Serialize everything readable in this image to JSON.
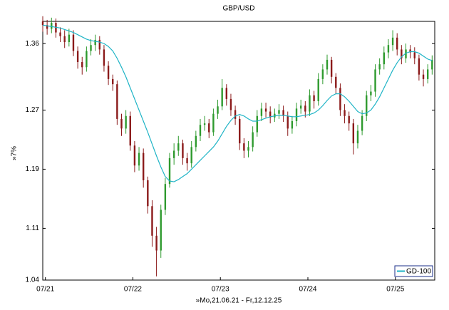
{
  "chart_data": {
    "type": "candlestick",
    "title": "GBP/USD",
    "xlabel": "»Mo,21.06.21 - Fr,12.12.25",
    "ylabel": "»7%",
    "x": [
      2021.47,
      2021.52,
      2021.57,
      2021.62,
      2021.67,
      2021.72,
      2021.77,
      2021.82,
      2021.87,
      2021.92,
      2021.97,
      2022.02,
      2022.07,
      2022.12,
      2022.17,
      2022.22,
      2022.27,
      2022.32,
      2022.37,
      2022.42,
      2022.47,
      2022.52,
      2022.57,
      2022.62,
      2022.67,
      2022.72,
      2022.77,
      2022.82,
      2022.87,
      2022.92,
      2022.97,
      2023.02,
      2023.07,
      2023.12,
      2023.17,
      2023.22,
      2023.27,
      2023.32,
      2023.37,
      2023.42,
      2023.47,
      2023.52,
      2023.57,
      2023.62,
      2023.67,
      2023.72,
      2023.77,
      2023.82,
      2023.87,
      2023.92,
      2023.97,
      2024.02,
      2024.07,
      2024.12,
      2024.17,
      2024.22,
      2024.27,
      2024.32,
      2024.37,
      2024.42,
      2024.47,
      2024.52,
      2024.57,
      2024.62,
      2024.67,
      2024.72,
      2024.77,
      2024.82,
      2024.87,
      2024.92,
      2024.97,
      2025.02,
      2025.07,
      2025.12,
      2025.17,
      2025.22,
      2025.27,
      2025.32,
      2025.37,
      2025.42,
      2025.47,
      2025.52,
      2025.57,
      2025.62,
      2025.67,
      2025.72,
      2025.77,
      2025.82,
      2025.87,
      2025.92
    ],
    "open": [
      1.39,
      1.385,
      1.38,
      1.388,
      1.375,
      1.37,
      1.362,
      1.372,
      1.35,
      1.335,
      1.328,
      1.35,
      1.358,
      1.365,
      1.352,
      1.33,
      1.312,
      1.305,
      1.258,
      1.245,
      1.262,
      1.222,
      1.195,
      1.212,
      1.175,
      1.14,
      1.1,
      1.08,
      1.135,
      1.17,
      1.205,
      1.215,
      1.225,
      1.205,
      1.198,
      1.22,
      1.235,
      1.25,
      1.252,
      1.24,
      1.265,
      1.275,
      1.3,
      1.285,
      1.27,
      1.258,
      1.225,
      1.215,
      1.22,
      1.24,
      1.262,
      1.272,
      1.268,
      1.26,
      1.265,
      1.27,
      1.262,
      1.245,
      1.255,
      1.272,
      1.276,
      1.268,
      1.29,
      1.282,
      1.312,
      1.325,
      1.338,
      1.315,
      1.3,
      1.27,
      1.262,
      1.252,
      1.225,
      1.242,
      1.262,
      1.29,
      1.295,
      1.325,
      1.332,
      1.348,
      1.358,
      1.368,
      1.352,
      1.34,
      1.352,
      1.348,
      1.34,
      1.318,
      1.312,
      1.325
    ],
    "high": [
      1.397,
      1.392,
      1.395,
      1.394,
      1.382,
      1.378,
      1.38,
      1.378,
      1.356,
      1.342,
      1.356,
      1.366,
      1.372,
      1.37,
      1.358,
      1.336,
      1.318,
      1.31,
      1.265,
      1.27,
      1.268,
      1.228,
      1.22,
      1.218,
      1.18,
      1.148,
      1.112,
      1.142,
      1.178,
      1.212,
      1.225,
      1.235,
      1.23,
      1.212,
      1.228,
      1.242,
      1.258,
      1.262,
      1.258,
      1.272,
      1.284,
      1.312,
      1.305,
      1.292,
      1.276,
      1.262,
      1.232,
      1.228,
      1.248,
      1.27,
      1.28,
      1.28,
      1.275,
      1.272,
      1.278,
      1.276,
      1.268,
      1.262,
      1.28,
      1.284,
      1.282,
      1.298,
      1.296,
      1.32,
      1.332,
      1.345,
      1.342,
      1.32,
      1.306,
      1.278,
      1.268,
      1.258,
      1.25,
      1.27,
      1.296,
      1.304,
      1.332,
      1.34,
      1.356,
      1.366,
      1.378,
      1.374,
      1.358,
      1.36,
      1.358,
      1.355,
      1.345,
      1.325,
      1.332,
      1.344
    ],
    "low": [
      1.376,
      1.372,
      1.374,
      1.368,
      1.362,
      1.354,
      1.356,
      1.343,
      1.326,
      1.318,
      1.322,
      1.344,
      1.35,
      1.345,
      1.322,
      1.304,
      1.296,
      1.25,
      1.235,
      1.238,
      1.215,
      1.186,
      1.188,
      1.165,
      1.13,
      1.085,
      1.045,
      1.07,
      1.128,
      1.165,
      1.196,
      1.208,
      1.196,
      1.188,
      1.192,
      1.214,
      1.228,
      1.242,
      1.232,
      1.235,
      1.258,
      1.27,
      1.276,
      1.262,
      1.25,
      1.216,
      1.205,
      1.206,
      1.214,
      1.234,
      1.255,
      1.26,
      1.252,
      1.254,
      1.258,
      1.254,
      1.235,
      1.238,
      1.248,
      1.265,
      1.26,
      1.262,
      1.272,
      1.276,
      1.305,
      1.318,
      1.306,
      1.292,
      1.262,
      1.252,
      1.242,
      1.21,
      1.218,
      1.236,
      1.255,
      1.282,
      1.288,
      1.318,
      1.325,
      1.34,
      1.35,
      1.344,
      1.332,
      1.334,
      1.34,
      1.332,
      1.31,
      1.302,
      1.306,
      1.318
    ],
    "close": [
      1.385,
      1.38,
      1.388,
      1.375,
      1.37,
      1.362,
      1.372,
      1.35,
      1.335,
      1.328,
      1.35,
      1.358,
      1.365,
      1.352,
      1.33,
      1.312,
      1.305,
      1.258,
      1.245,
      1.262,
      1.222,
      1.195,
      1.212,
      1.175,
      1.14,
      1.1,
      1.08,
      1.135,
      1.17,
      1.205,
      1.215,
      1.225,
      1.205,
      1.198,
      1.22,
      1.235,
      1.25,
      1.252,
      1.24,
      1.265,
      1.275,
      1.3,
      1.285,
      1.27,
      1.258,
      1.225,
      1.215,
      1.22,
      1.24,
      1.262,
      1.272,
      1.268,
      1.26,
      1.265,
      1.27,
      1.262,
      1.245,
      1.255,
      1.272,
      1.276,
      1.268,
      1.29,
      1.282,
      1.312,
      1.325,
      1.338,
      1.315,
      1.3,
      1.27,
      1.262,
      1.252,
      1.225,
      1.242,
      1.262,
      1.29,
      1.295,
      1.325,
      1.332,
      1.348,
      1.358,
      1.368,
      1.352,
      1.34,
      1.352,
      1.348,
      1.34,
      1.318,
      1.312,
      1.325,
      1.338
    ],
    "up_color": "#2e9a2e",
    "down_color": "#8b1a1a",
    "series": [
      {
        "name": "GD-100",
        "color": "#1fb4c6",
        "values": [
          1.385,
          1.384,
          1.383,
          1.382,
          1.381,
          1.379,
          1.377,
          1.375,
          1.372,
          1.369,
          1.366,
          1.364,
          1.363,
          1.362,
          1.36,
          1.356,
          1.35,
          1.34,
          1.328,
          1.315,
          1.3,
          1.285,
          1.27,
          1.255,
          1.24,
          1.224,
          1.208,
          1.193,
          1.18,
          1.174,
          1.173,
          1.176,
          1.18,
          1.184,
          1.19,
          1.196,
          1.202,
          1.208,
          1.214,
          1.22,
          1.228,
          1.238,
          1.248,
          1.256,
          1.262,
          1.264,
          1.262,
          1.258,
          1.255,
          1.255,
          1.257,
          1.259,
          1.261,
          1.262,
          1.263,
          1.263,
          1.262,
          1.261,
          1.261,
          1.262,
          1.263,
          1.264,
          1.266,
          1.27,
          1.276,
          1.283,
          1.289,
          1.292,
          1.292,
          1.288,
          1.282,
          1.275,
          1.268,
          1.265,
          1.266,
          1.27,
          1.278,
          1.288,
          1.3,
          1.312,
          1.324,
          1.334,
          1.342,
          1.347,
          1.349,
          1.349,
          1.347,
          1.343,
          1.339,
          1.337
        ]
      }
    ],
    "xlim": [
      2021.47,
      2025.95
    ],
    "xticks": [
      {
        "value": 2021.5,
        "label": "07/21"
      },
      {
        "value": 2022.5,
        "label": "07/22"
      },
      {
        "value": 2023.5,
        "label": "07/23"
      },
      {
        "value": 2024.5,
        "label": "07/24"
      },
      {
        "value": 2025.5,
        "label": "07/25"
      }
    ],
    "ylim": [
      1.04,
      1.39
    ],
    "yticks": [
      1.04,
      1.11,
      1.19,
      1.27,
      1.36
    ],
    "legend": "lower right"
  }
}
